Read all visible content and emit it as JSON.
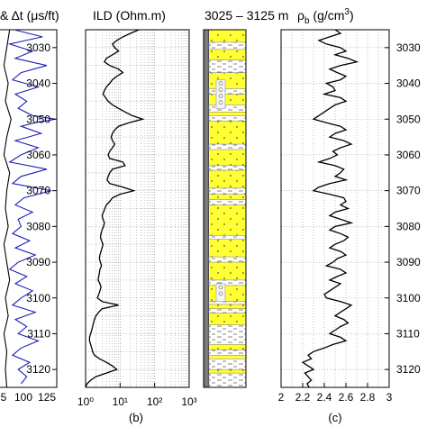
{
  "chart_data": [
    {
      "id": "panel-a",
      "type": "line",
      "title": "& Δt (μs/ft)",
      "xlim": [
        null,
        125
      ],
      "xtick_labels": [
        "5",
        "100",
        "125"
      ],
      "ylim": [
        3025,
        3125
      ],
      "yticks": [
        3030,
        3040,
        3050,
        3060,
        3070,
        3080,
        3090,
        3100,
        3110,
        3120
      ],
      "series": [
        {
          "color": "#1f1fb4",
          "comment": "sonic transit time curve, partially cropped at left edge",
          "y": [
            3025,
            3027,
            3029,
            3031,
            3033,
            3035,
            3037,
            3039,
            3041,
            3043,
            3045,
            3047,
            3049,
            3050,
            3051,
            3052,
            3054,
            3056,
            3058,
            3060,
            3062,
            3064,
            3066,
            3068,
            3070,
            3072,
            3074,
            3076,
            3078,
            3080,
            3082,
            3084,
            3086,
            3088,
            3090,
            3092,
            3094,
            3096,
            3098,
            3100,
            3102,
            3104,
            3106,
            3108,
            3110,
            3112,
            3114,
            3116,
            3118,
            3120,
            3122,
            3124
          ],
          "x": [
            95,
            115,
            92,
            108,
            96,
            118,
            100,
            94,
            112,
            96,
            104,
            98,
            108,
            124,
            110,
            100,
            114,
            96,
            112,
            100,
            92,
            118,
            100,
            94,
            121,
            102,
            96,
            108,
            98,
            100,
            94,
            106,
            96,
            110,
            98,
            92,
            104,
            96,
            108,
            100,
            94,
            110,
            96,
            104,
            98,
            112,
            100,
            94,
            106,
            98,
            104,
            100
          ]
        },
        {
          "color": "#000000",
          "comment": "second curve, mostly outside the cropped frame",
          "y": [
            3025,
            3030,
            3035,
            3040,
            3045,
            3050,
            3055,
            3060,
            3065,
            3070,
            3075,
            3080,
            3085,
            3090,
            3095,
            3100,
            3105,
            3110,
            3115,
            3120,
            3125
          ],
          "x": [
            92,
            90,
            88,
            91,
            89,
            93,
            90,
            88,
            92,
            90,
            89,
            91,
            88,
            90,
            92,
            89,
            91,
            88,
            90,
            89,
            90
          ]
        }
      ]
    },
    {
      "id": "panel-b",
      "type": "line",
      "title": "ILD (Ohm.m)",
      "caption": "(b)",
      "xscale": "log",
      "xlim": [
        1,
        1000
      ],
      "xtick_labels": [
        "10⁰",
        "10¹",
        "10²",
        "10³"
      ],
      "ylim": [
        3025,
        3125
      ],
      "grid": true,
      "series": [
        {
          "color": "#000000",
          "y": [
            3025,
            3026,
            3027,
            3028,
            3029,
            3030,
            3031,
            3032,
            3033,
            3034,
            3035,
            3036,
            3037,
            3038,
            3039,
            3040,
            3041,
            3042,
            3043,
            3044,
            3045,
            3046,
            3047,
            3048,
            3049,
            3050,
            3051,
            3052,
            3053,
            3054,
            3055,
            3056,
            3057,
            3058,
            3059,
            3060,
            3061,
            3062,
            3063,
            3064,
            3065,
            3066,
            3067,
            3068,
            3069,
            3070,
            3071,
            3072,
            3073,
            3074,
            3075,
            3076,
            3077,
            3078,
            3079,
            3080,
            3081,
            3082,
            3083,
            3084,
            3085,
            3086,
            3087,
            3088,
            3089,
            3090,
            3091,
            3092,
            3093,
            3094,
            3095,
            3096,
            3097,
            3098,
            3099,
            3100,
            3101,
            3102,
            3103,
            3104,
            3105,
            3106,
            3107,
            3108,
            3109,
            3110,
            3111,
            3112,
            3113,
            3114,
            3115,
            3116,
            3117,
            3118,
            3119,
            3120,
            3121,
            3122,
            3123,
            3124,
            3125
          ],
          "x": [
            35,
            20,
            12,
            8,
            6,
            7,
            9,
            6,
            4,
            3.5,
            5,
            9,
            12,
            8,
            6,
            5,
            4,
            3.5,
            3.2,
            3.8,
            4.5,
            6,
            9,
            14,
            22,
            45,
            18,
            9,
            7,
            6,
            5.5,
            6,
            7,
            6,
            5,
            4.5,
            5,
            12,
            14,
            6,
            5,
            4.5,
            4.2,
            5,
            12,
            25,
            10,
            6,
            5,
            4,
            3.6,
            3.3,
            3,
            3.2,
            3.5,
            3.3,
            3,
            2.8,
            2.7,
            2.9,
            3.2,
            3,
            2.8,
            2.6,
            2.5,
            2.7,
            2.9,
            2.6,
            2.5,
            2.4,
            2.3,
            2.6,
            2.8,
            2.6,
            2.4,
            2.2,
            3,
            9,
            3,
            2.4,
            2,
            1.8,
            1.7,
            1.6,
            1.5,
            1.4,
            1.3,
            1.3,
            1.4,
            1.5,
            1.6,
            1.8,
            2.5,
            4,
            6,
            8,
            4,
            2,
            1.4,
            1.1,
            1
          ]
        }
      ]
    },
    {
      "id": "panel-lith",
      "type": "other",
      "title": "3025 – 3125 m",
      "comment": "lithology column: yellow = sandstone, grey-white = shale/silt"
    },
    {
      "id": "panel-c",
      "type": "line",
      "title": "ρ",
      "title_sub": "b",
      "title_unit_pre": " (g/cm",
      "title_unit_sup": "3",
      "title_unit_post": ")",
      "caption": "(c)",
      "xlim": [
        2,
        3
      ],
      "xtick_labels": [
        "2",
        "2.2",
        "2.4",
        "2.6",
        "2.8",
        "3"
      ],
      "ylim": [
        3025,
        3125
      ],
      "yticks": [
        3030,
        3040,
        3050,
        3060,
        3070,
        3080,
        3090,
        3100,
        3110,
        3120
      ],
      "grid": true,
      "series": [
        {
          "color": "#000000",
          "y": [
            3025,
            3026,
            3027,
            3028,
            3029,
            3030,
            3031,
            3032,
            3033,
            3034,
            3035,
            3036,
            3037,
            3038,
            3039,
            3040,
            3041,
            3042,
            3043,
            3044,
            3045,
            3046,
            3047,
            3048,
            3049,
            3050,
            3051,
            3052,
            3053,
            3054,
            3055,
            3056,
            3057,
            3058,
            3059,
            3060,
            3061,
            3062,
            3063,
            3064,
            3065,
            3066,
            3067,
            3068,
            3069,
            3070,
            3071,
            3072,
            3073,
            3074,
            3075,
            3076,
            3077,
            3078,
            3079,
            3080,
            3081,
            3082,
            3083,
            3084,
            3085,
            3086,
            3087,
            3088,
            3089,
            3090,
            3091,
            3092,
            3093,
            3094,
            3095,
            3096,
            3097,
            3098,
            3099,
            3100,
            3101,
            3102,
            3103,
            3104,
            3105,
            3106,
            3107,
            3108,
            3109,
            3110,
            3111,
            3112,
            3113,
            3114,
            3115,
            3116,
            3117,
            3118,
            3119,
            3120,
            3121,
            3122,
            3123,
            3124,
            3125
          ],
          "x": [
            2.5,
            2.55,
            2.45,
            2.35,
            2.42,
            2.55,
            2.6,
            2.5,
            2.62,
            2.7,
            2.55,
            2.45,
            2.52,
            2.6,
            2.55,
            2.42,
            2.48,
            2.5,
            2.4,
            2.55,
            2.6,
            2.5,
            2.45,
            2.4,
            2.35,
            2.3,
            2.42,
            2.55,
            2.6,
            2.5,
            2.45,
            2.58,
            2.65,
            2.55,
            2.48,
            2.52,
            2.45,
            2.35,
            2.5,
            2.58,
            2.55,
            2.5,
            2.6,
            2.45,
            2.35,
            2.3,
            2.45,
            2.58,
            2.6,
            2.55,
            2.62,
            2.5,
            2.45,
            2.55,
            2.65,
            2.5,
            2.45,
            2.55,
            2.62,
            2.58,
            2.5,
            2.45,
            2.55,
            2.6,
            2.52,
            2.48,
            2.42,
            2.55,
            2.6,
            2.52,
            2.45,
            2.55,
            2.5,
            2.45,
            2.4,
            2.42,
            2.55,
            2.65,
            2.6,
            2.55,
            2.5,
            2.58,
            2.62,
            2.55,
            2.5,
            2.45,
            2.55,
            2.6,
            2.48,
            2.4,
            2.3,
            2.25,
            2.28,
            2.2,
            2.25,
            2.3,
            2.22,
            2.25,
            2.28,
            2.24,
            2.26
          ]
        }
      ]
    }
  ]
}
